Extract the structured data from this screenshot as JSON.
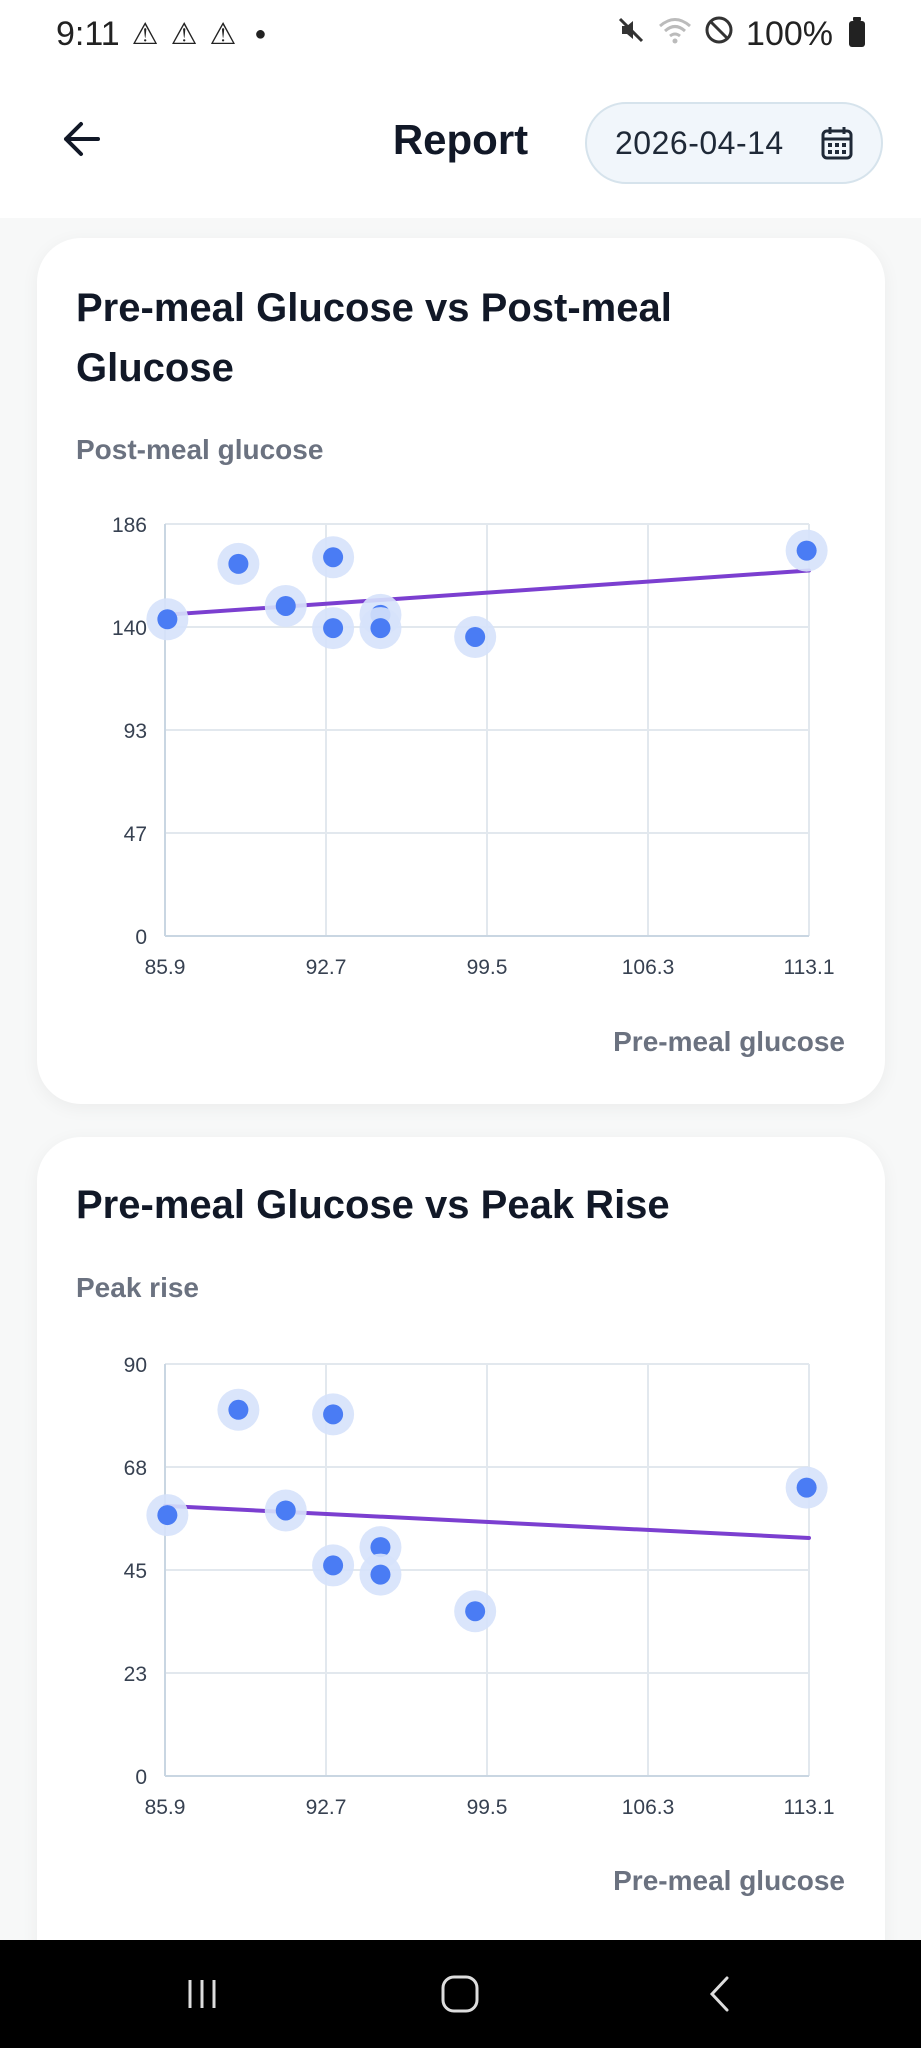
{
  "status_bar": {
    "time": "9:11",
    "battery": "100%",
    "icons": [
      "warning-icon",
      "warning-icon",
      "warning-icon",
      "notification-dot",
      "mute-icon",
      "wifi-icon",
      "do-not-disturb-icon",
      "battery-icon"
    ]
  },
  "header": {
    "title": "Report",
    "date": "2026-04-14",
    "back_icon": "arrow-left-icon",
    "calendar_icon": "calendar-icon"
  },
  "colors": {
    "point": "#4a7cf4",
    "point_halo": "#d6e2fb",
    "trend": "#7b3fd0",
    "grid": "#e2e8ee",
    "axis_text": "#374151"
  },
  "charts": [
    {
      "title": "Pre-meal Glucose vs Post-meal Glucose",
      "ylabel": "Post-meal glucose",
      "xlabel": "Pre-meal glucose"
    },
    {
      "title": "Pre-meal Glucose vs Peak Rise",
      "ylabel": "Peak rise",
      "xlabel": "Pre-meal glucose"
    }
  ],
  "chart_data": [
    {
      "type": "scatter",
      "title": "Pre-meal Glucose vs Post-meal Glucose",
      "xlabel": "Pre-meal glucose",
      "ylabel": "Post-meal glucose",
      "xlim": [
        85.9,
        113.1
      ],
      "ylim": [
        0,
        186
      ],
      "x_ticks": [
        "85.9",
        "92.7",
        "99.5",
        "106.3",
        "113.1"
      ],
      "y_ticks": [
        "0",
        "47",
        "93",
        "140",
        "186"
      ],
      "grid": true,
      "points": [
        {
          "x": 86.0,
          "y": 143
        },
        {
          "x": 89.0,
          "y": 168
        },
        {
          "x": 91.0,
          "y": 149
        },
        {
          "x": 93.0,
          "y": 171
        },
        {
          "x": 93.0,
          "y": 139
        },
        {
          "x": 95.0,
          "y": 145
        },
        {
          "x": 95.0,
          "y": 139
        },
        {
          "x": 99.0,
          "y": 135
        },
        {
          "x": 113.0,
          "y": 174
        }
      ],
      "trendline": {
        "x": [
          85.9,
          113.1
        ],
        "y": [
          145,
          165
        ]
      }
    },
    {
      "type": "scatter",
      "title": "Pre-meal Glucose vs Peak Rise",
      "xlabel": "Pre-meal glucose",
      "ylabel": "Peak rise",
      "xlim": [
        85.9,
        113.1
      ],
      "ylim": [
        0,
        90
      ],
      "x_ticks": [
        "85.9",
        "92.7",
        "99.5",
        "106.3",
        "113.1"
      ],
      "y_ticks": [
        "0",
        "23",
        "45",
        "68",
        "90"
      ],
      "grid": true,
      "points": [
        {
          "x": 86.0,
          "y": 57
        },
        {
          "x": 89.0,
          "y": 80
        },
        {
          "x": 91.0,
          "y": 58
        },
        {
          "x": 93.0,
          "y": 79
        },
        {
          "x": 93.0,
          "y": 46
        },
        {
          "x": 95.0,
          "y": 50
        },
        {
          "x": 95.0,
          "y": 44
        },
        {
          "x": 99.0,
          "y": 36
        },
        {
          "x": 113.0,
          "y": 63
        }
      ],
      "trendline": {
        "x": [
          85.9,
          113.1
        ],
        "y": [
          59,
          52
        ]
      }
    }
  ]
}
